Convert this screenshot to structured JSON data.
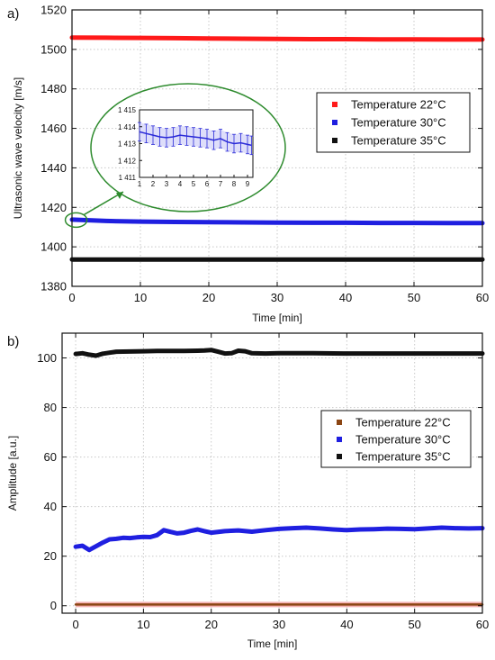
{
  "chart_data": [
    {
      "panel_label": "a)",
      "type": "line",
      "xlabel": "Time [min]",
      "ylabel": "Ultrasonic wave velocity [m/s]",
      "xlim": [
        0,
        60
      ],
      "ylim": [
        1380,
        1520
      ],
      "xticks": [
        "0",
        "10",
        "20",
        "30",
        "40",
        "50",
        "60"
      ],
      "yticks": [
        "1380",
        "1400",
        "1420",
        "1440",
        "1460",
        "1480",
        "1500",
        "1520"
      ],
      "grid": true,
      "legend_position": "right",
      "series": [
        {
          "name": "Temperature 22°C",
          "color": "#ff1a1a",
          "x": [
            0,
            5,
            10,
            15,
            20,
            25,
            30,
            35,
            40,
            45,
            50,
            55,
            60
          ],
          "y": [
            1506.0,
            1505.9,
            1505.8,
            1505.7,
            1505.5,
            1505.4,
            1505.3,
            1505.2,
            1505.2,
            1505.1,
            1505.1,
            1505.0,
            1505.0
          ]
        },
        {
          "name": "Temperature 30°C",
          "color": "#1f1fe0",
          "x": [
            0,
            5,
            10,
            15,
            20,
            25,
            30,
            35,
            40,
            45,
            50,
            55,
            60
          ],
          "y": [
            1413.8,
            1413.1,
            1412.8,
            1412.6,
            1412.5,
            1412.4,
            1412.3,
            1412.2,
            1412.2,
            1412.1,
            1412.1,
            1412.0,
            1412.0
          ]
        },
        {
          "name": "Temperature 35°C",
          "color": "#111111",
          "x": [
            0,
            5,
            10,
            15,
            20,
            25,
            30,
            35,
            40,
            45,
            50,
            55,
            60
          ],
          "y": [
            1393.6,
            1393.6,
            1393.6,
            1393.6,
            1393.6,
            1393.6,
            1393.6,
            1393.6,
            1393.6,
            1393.6,
            1393.6,
            1393.6,
            1393.6
          ]
        }
      ],
      "inset": {
        "type": "line",
        "xlim": [
          1,
          9.4
        ],
        "ylim": [
          1411,
          1415
        ],
        "xticks": [
          "1",
          "2",
          "3",
          "4",
          "5",
          "6",
          "7",
          "8",
          "9"
        ],
        "yticks": [
          "1 411",
          "1 412",
          "1 413",
          "1 414",
          "1 415"
        ],
        "color": "#2a2ad8",
        "x": [
          1,
          1.5,
          2,
          2.5,
          3,
          3.5,
          4,
          4.5,
          5,
          5.5,
          6,
          6.5,
          7,
          7.5,
          8,
          8.5,
          9,
          9.3
        ],
        "y": [
          1413.7,
          1413.6,
          1413.5,
          1413.4,
          1413.35,
          1413.4,
          1413.5,
          1413.45,
          1413.4,
          1413.35,
          1413.3,
          1413.2,
          1413.3,
          1413.1,
          1413.0,
          1413.05,
          1412.95,
          1412.9
        ],
        "error": 0.55
      }
    },
    {
      "panel_label": "b)",
      "type": "line",
      "xlabel": "Time [min]",
      "ylabel": "Amplitude [a.u.]",
      "xlim": [
        -2,
        60
      ],
      "ylim": [
        -3,
        110
      ],
      "xticks": [
        "0",
        "10",
        "20",
        "30",
        "40",
        "50",
        "60"
      ],
      "yticks": [
        "0",
        "20",
        "40",
        "60",
        "80",
        "100"
      ],
      "grid": true,
      "legend_position": "right",
      "series": [
        {
          "name": "Temperature 22°C",
          "color": "#8b4513",
          "band_color": "#f3b0b0",
          "x": [
            0,
            10,
            20,
            30,
            40,
            50,
            60
          ],
          "y": [
            0.5,
            0.5,
            0.5,
            0.5,
            0.5,
            0.5,
            0.5
          ]
        },
        {
          "name": "Temperature 30°C",
          "color": "#1f1fe0",
          "x": [
            0,
            1,
            2,
            3,
            4,
            5,
            6,
            7,
            8,
            9,
            10,
            11,
            12,
            13,
            14,
            15,
            16,
            17,
            18,
            19,
            20,
            22,
            24,
            26,
            28,
            30,
            32,
            34,
            36,
            38,
            40,
            42,
            44,
            46,
            48,
            50,
            52,
            54,
            56,
            58,
            60
          ],
          "y": [
            23.8,
            24.2,
            22.5,
            24,
            25.5,
            26.8,
            27,
            27.4,
            27.3,
            27.6,
            27.8,
            27.7,
            28.5,
            30.5,
            29.8,
            29.2,
            29.5,
            30.2,
            30.8,
            30.1,
            29.5,
            30.1,
            30.4,
            29.9,
            30.5,
            31,
            31.3,
            31.5,
            31.2,
            30.8,
            30.5,
            30.8,
            30.9,
            31.1,
            31,
            30.9,
            31.2,
            31.5,
            31.3,
            31.2,
            31.3
          ]
        },
        {
          "name": "Temperature 35°C",
          "color": "#111111",
          "x": [
            0,
            1,
            2,
            3,
            4,
            5,
            6,
            8,
            10,
            12,
            14,
            16,
            18,
            19,
            20,
            21,
            22,
            23,
            24,
            25,
            26,
            28,
            30,
            35,
            40,
            45,
            50,
            55,
            60
          ],
          "y": [
            101.6,
            101.9,
            101.3,
            100.9,
            101.7,
            102.1,
            102.5,
            102.6,
            102.7,
            102.8,
            102.8,
            102.8,
            102.9,
            103.0,
            103.2,
            102.5,
            101.8,
            101.9,
            102.9,
            102.7,
            101.9,
            101.8,
            101.9,
            101.9,
            101.8,
            101.8,
            101.8,
            101.8,
            101.8
          ]
        }
      ]
    }
  ]
}
